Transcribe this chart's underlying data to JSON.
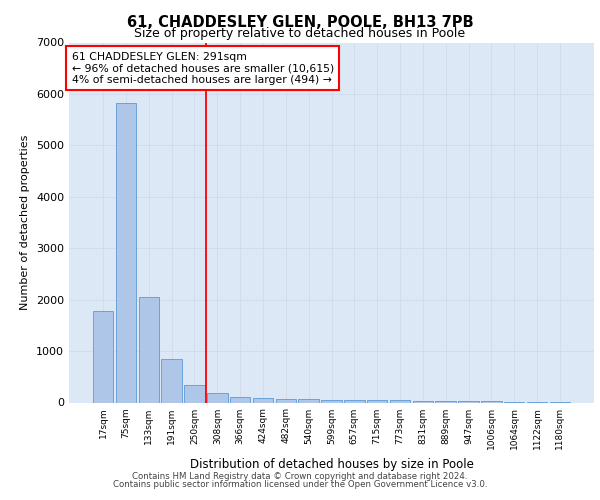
{
  "title1": "61, CHADDESLEY GLEN, POOLE, BH13 7PB",
  "title2": "Size of property relative to detached houses in Poole",
  "xlabel": "Distribution of detached houses by size in Poole",
  "ylabel": "Number of detached properties",
  "annotation_line1": "61 CHADDESLEY GLEN: 291sqm",
  "annotation_line2": "← 96% of detached houses are smaller (10,615)",
  "annotation_line3": "4% of semi-detached houses are larger (494) →",
  "bar_labels": [
    "17sqm",
    "75sqm",
    "133sqm",
    "191sqm",
    "250sqm",
    "308sqm",
    "366sqm",
    "424sqm",
    "482sqm",
    "540sqm",
    "599sqm",
    "657sqm",
    "715sqm",
    "773sqm",
    "831sqm",
    "889sqm",
    "947sqm",
    "1006sqm",
    "1064sqm",
    "1122sqm",
    "1180sqm"
  ],
  "bar_values": [
    1780,
    5820,
    2060,
    840,
    340,
    190,
    110,
    95,
    75,
    60,
    55,
    50,
    45,
    40,
    35,
    30,
    25,
    20,
    15,
    10,
    8
  ],
  "bar_color": "#aec6e8",
  "bar_edge_color": "#5b9bd5",
  "vline_x": 4.5,
  "vline_color": "red",
  "ylim": [
    0,
    7000
  ],
  "yticks": [
    0,
    1000,
    2000,
    3000,
    4000,
    5000,
    6000,
    7000
  ],
  "grid_color": "#d0d8e8",
  "bg_color": "#dce8f5",
  "footer1": "Contains HM Land Registry data © Crown copyright and database right 2024.",
  "footer2": "Contains public sector information licensed under the Open Government Licence v3.0."
}
